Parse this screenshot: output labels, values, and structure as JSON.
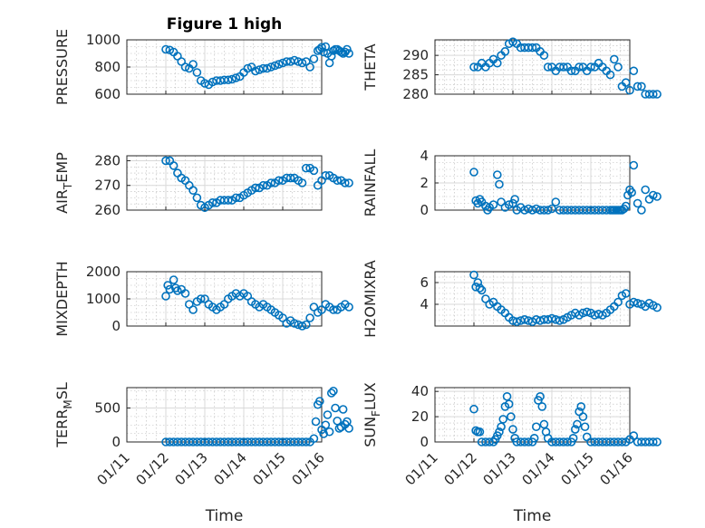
{
  "figure": {
    "title": "Figure 1 high",
    "marker_color": "#0072BD"
  },
  "chart_data": [
    {
      "type": "scatter",
      "title": "Figure 1 high",
      "xlabel": "",
      "ylabel": "PRESSURE",
      "ylim": [
        600,
        1000
      ],
      "yticks": [
        600,
        800,
        1000
      ],
      "xlim": [
        "01/11",
        "01/16"
      ],
      "xticks": [
        "01/11",
        "01/12",
        "01/13",
        "01/14",
        "01/15",
        "01/16"
      ],
      "series": [
        {
          "x": [
            1.0,
            1.1,
            1.2,
            1.3,
            1.4,
            1.5,
            1.6,
            1.7,
            1.8,
            1.9,
            2.0,
            2.1,
            2.2,
            2.3,
            2.4,
            2.5,
            2.6,
            2.7,
            2.8,
            2.9,
            3.0,
            3.1,
            3.2,
            3.3,
            3.4,
            3.5,
            3.6,
            3.7,
            3.8,
            3.9,
            4.0,
            4.1,
            4.2,
            4.3,
            4.4,
            4.5,
            4.6,
            4.7,
            4.8,
            4.9,
            4.95,
            5.0,
            5.05,
            5.1,
            5.15,
            5.2,
            5.25,
            5.3,
            5.35,
            5.4,
            5.45,
            5.5,
            5.55,
            5.6,
            5.65,
            5.7
          ],
          "y": [
            930,
            925,
            910,
            880,
            840,
            800,
            790,
            820,
            760,
            700,
            680,
            670,
            690,
            700,
            700,
            705,
            705,
            710,
            720,
            730,
            760,
            790,
            800,
            770,
            780,
            790,
            790,
            800,
            810,
            820,
            830,
            840,
            840,
            850,
            840,
            830,
            840,
            800,
            860,
            920,
            930,
            945,
            910,
            950,
            900,
            830,
            880,
            920,
            930,
            930,
            920,
            910,
            900,
            910,
            930,
            900
          ]
        }
      ]
    },
    {
      "type": "scatter",
      "title": "",
      "xlabel": "",
      "ylabel": "THETA",
      "ylim": [
        280,
        294
      ],
      "yticks": [
        280,
        285,
        290
      ],
      "xlim": [
        "01/11",
        "01/16"
      ],
      "xticks": [
        "01/11",
        "01/12",
        "01/13",
        "01/14",
        "01/15",
        "01/16"
      ],
      "series": [
        {
          "x": [
            1.0,
            1.1,
            1.2,
            1.3,
            1.4,
            1.5,
            1.6,
            1.7,
            1.8,
            1.9,
            2.0,
            2.1,
            2.2,
            2.3,
            2.4,
            2.5,
            2.6,
            2.7,
            2.8,
            2.9,
            3.0,
            3.1,
            3.2,
            3.3,
            3.4,
            3.5,
            3.6,
            3.7,
            3.8,
            3.9,
            4.0,
            4.1,
            4.2,
            4.3,
            4.4,
            4.5,
            4.6,
            4.7,
            4.8,
            4.9,
            5.0,
            5.1,
            5.2,
            5.3,
            5.4,
            5.5,
            5.6,
            5.7
          ],
          "y": [
            287,
            287,
            288,
            287,
            288,
            289,
            288,
            290,
            291,
            293,
            293.5,
            293,
            292,
            292,
            292,
            292,
            292,
            291,
            290,
            287,
            287,
            286,
            287,
            287,
            287,
            286,
            286,
            287,
            287,
            286,
            287,
            287,
            288,
            287,
            286,
            285,
            289,
            287,
            282,
            283,
            281,
            286,
            282,
            282,
            280,
            280,
            280,
            280
          ]
        }
      ]
    },
    {
      "type": "scatter",
      "title": "",
      "xlabel": "",
      "ylabel": "AIR_TEMP",
      "ylim": [
        260,
        282
      ],
      "yticks": [
        260,
        270,
        280
      ],
      "xlim": [
        "01/11",
        "01/16"
      ],
      "xticks": [
        "01/11",
        "01/12",
        "01/13",
        "01/14",
        "01/15",
        "01/16"
      ],
      "series": [
        {
          "x": [
            1.0,
            1.1,
            1.2,
            1.3,
            1.4,
            1.5,
            1.6,
            1.7,
            1.8,
            1.9,
            2.0,
            2.1,
            2.2,
            2.3,
            2.4,
            2.5,
            2.6,
            2.7,
            2.8,
            2.9,
            3.0,
            3.1,
            3.2,
            3.3,
            3.4,
            3.5,
            3.6,
            3.7,
            3.8,
            3.9,
            4.0,
            4.1,
            4.2,
            4.3,
            4.4,
            4.5,
            4.6,
            4.7,
            4.8,
            4.9,
            5.0,
            5.1,
            5.2,
            5.3,
            5.4,
            5.5,
            5.6,
            5.7
          ],
          "y": [
            280,
            280,
            278,
            275,
            273,
            272,
            270,
            268,
            265,
            262,
            261,
            262,
            263,
            263,
            264,
            264,
            264,
            264,
            265,
            265,
            266,
            267,
            268,
            269,
            269,
            270,
            270,
            271,
            271,
            272,
            272,
            273,
            273,
            273,
            272,
            271,
            277,
            277,
            276,
            270,
            272,
            274,
            274,
            273,
            272,
            272,
            271,
            271
          ]
        }
      ]
    },
    {
      "type": "scatter",
      "title": "",
      "xlabel": "",
      "ylabel": "RAINFALL",
      "ylim": [
        0,
        4
      ],
      "yticks": [
        0,
        2,
        4
      ],
      "xlim": [
        "01/11",
        "01/16"
      ],
      "xticks": [
        "01/11",
        "01/12",
        "01/13",
        "01/14",
        "01/15",
        "01/16"
      ],
      "series": [
        {
          "x": [
            1.0,
            1.05,
            1.1,
            1.15,
            1.2,
            1.3,
            1.35,
            1.4,
            1.5,
            1.6,
            1.65,
            1.7,
            1.8,
            1.9,
            2.0,
            2.05,
            2.1,
            2.2,
            2.3,
            2.4,
            2.5,
            2.6,
            2.7,
            2.8,
            2.9,
            3.0,
            3.1,
            3.2,
            3.3,
            3.4,
            3.5,
            3.6,
            3.7,
            3.8,
            3.9,
            4.0,
            4.1,
            4.2,
            4.3,
            4.4,
            4.5,
            4.55,
            4.6,
            4.65,
            4.7,
            4.75,
            4.8,
            4.85,
            4.9,
            4.95,
            5.0,
            5.05,
            5.1,
            5.2,
            5.3,
            5.4,
            5.5,
            5.6,
            5.7
          ],
          "y": [
            2.8,
            0.7,
            0.5,
            0.8,
            0.6,
            0.3,
            0,
            0.2,
            0.4,
            2.6,
            1.9,
            0.6,
            0.2,
            0.4,
            0.5,
            0.8,
            0,
            0.2,
            0,
            0.1,
            0,
            0.1,
            0,
            0,
            0,
            0.1,
            0.6,
            0,
            0,
            0,
            0,
            0,
            0,
            0,
            0,
            0,
            0,
            0,
            0,
            0,
            0,
            0,
            0,
            0,
            0,
            0,
            0,
            0.1,
            0.3,
            1.1,
            1.5,
            1.3,
            3.3,
            0.5,
            0,
            1.5,
            0.8,
            1.1,
            1.0
          ]
        }
      ]
    },
    {
      "type": "scatter",
      "title": "",
      "xlabel": "",
      "ylabel": "MIXDEPTH",
      "ylim": [
        0,
        2000
      ],
      "yticks": [
        0,
        1000,
        2000
      ],
      "xlim": [
        "01/11",
        "01/16"
      ],
      "xticks": [
        "01/11",
        "01/12",
        "01/13",
        "01/14",
        "01/15",
        "01/16"
      ],
      "series": [
        {
          "x": [
            1.0,
            1.05,
            1.1,
            1.2,
            1.25,
            1.3,
            1.4,
            1.5,
            1.6,
            1.7,
            1.8,
            1.9,
            2.0,
            2.1,
            2.2,
            2.3,
            2.4,
            2.5,
            2.6,
            2.7,
            2.8,
            2.9,
            3.0,
            3.1,
            3.2,
            3.3,
            3.4,
            3.5,
            3.6,
            3.7,
            3.8,
            3.9,
            4.0,
            4.1,
            4.2,
            4.3,
            4.4,
            4.5,
            4.6,
            4.7,
            4.8,
            4.9,
            5.0,
            5.1,
            5.2,
            5.3,
            5.4,
            5.5,
            5.6,
            5.7
          ],
          "y": [
            1100,
            1500,
            1350,
            1700,
            1400,
            1300,
            1350,
            1200,
            800,
            600,
            900,
            1000,
            1000,
            800,
            700,
            600,
            700,
            800,
            1000,
            1100,
            1200,
            1100,
            1200,
            1100,
            900,
            800,
            700,
            800,
            700,
            600,
            500,
            400,
            300,
            100,
            200,
            100,
            50,
            0,
            50,
            300,
            700,
            500,
            600,
            800,
            700,
            600,
            600,
            700,
            800,
            700
          ]
        }
      ]
    },
    {
      "type": "scatter",
      "title": "",
      "xlabel": "",
      "ylabel": "H2OMIXRA",
      "ylim": [
        2,
        7
      ],
      "yticks": [
        4,
        6
      ],
      "xlim": [
        "01/11",
        "01/16"
      ],
      "xticks": [
        "01/11",
        "01/12",
        "01/13",
        "01/14",
        "01/15",
        "01/16"
      ],
      "series": [
        {
          "x": [
            1.0,
            1.05,
            1.1,
            1.15,
            1.2,
            1.3,
            1.4,
            1.5,
            1.6,
            1.7,
            1.8,
            1.9,
            2.0,
            2.1,
            2.2,
            2.3,
            2.4,
            2.5,
            2.6,
            2.7,
            2.8,
            2.9,
            3.0,
            3.1,
            3.2,
            3.3,
            3.4,
            3.5,
            3.6,
            3.7,
            3.8,
            3.9,
            4.0,
            4.1,
            4.2,
            4.3,
            4.4,
            4.5,
            4.6,
            4.7,
            4.8,
            4.9,
            5.0,
            5.1,
            5.2,
            5.3,
            5.4,
            5.5,
            5.6,
            5.7
          ],
          "y": [
            6.7,
            5.6,
            6.0,
            5.5,
            5.3,
            4.5,
            4.0,
            4.2,
            3.8,
            3.5,
            3.2,
            2.8,
            2.5,
            2.4,
            2.5,
            2.6,
            2.5,
            2.4,
            2.6,
            2.5,
            2.6,
            2.6,
            2.7,
            2.6,
            2.5,
            2.6,
            2.8,
            3.0,
            3.2,
            3.0,
            3.2,
            3.3,
            3.2,
            3.0,
            3.1,
            3.0,
            3.2,
            3.5,
            3.8,
            4.2,
            4.8,
            5.0,
            4.0,
            4.2,
            4.1,
            4.0,
            3.8,
            4.1,
            3.9,
            3.7
          ]
        }
      ]
    },
    {
      "type": "scatter",
      "title": "",
      "xlabel": "Time",
      "ylabel": "TERR_MSL",
      "ylim": [
        0,
        800
      ],
      "yticks": [
        0,
        500
      ],
      "xlim": [
        "01/11",
        "01/16"
      ],
      "xticks": [
        "01/11",
        "01/12",
        "01/13",
        "01/14",
        "01/15",
        "01/16"
      ],
      "series": [
        {
          "x": [
            1.0,
            1.1,
            1.2,
            1.3,
            1.4,
            1.5,
            1.6,
            1.7,
            1.8,
            1.9,
            2.0,
            2.1,
            2.2,
            2.3,
            2.4,
            2.5,
            2.6,
            2.7,
            2.8,
            2.9,
            3.0,
            3.1,
            3.2,
            3.3,
            3.4,
            3.5,
            3.6,
            3.7,
            3.8,
            3.9,
            4.0,
            4.1,
            4.2,
            4.3,
            4.4,
            4.5,
            4.6,
            4.7,
            4.8,
            4.85,
            4.9,
            4.95,
            5.0,
            5.05,
            5.1,
            5.15,
            5.2,
            5.25,
            5.3,
            5.35,
            5.4,
            5.45,
            5.5,
            5.55,
            5.6,
            5.65,
            5.7
          ],
          "y": [
            0,
            0,
            0,
            0,
            0,
            0,
            0,
            0,
            0,
            0,
            0,
            0,
            0,
            0,
            0,
            0,
            0,
            0,
            0,
            0,
            0,
            0,
            0,
            0,
            0,
            0,
            0,
            0,
            0,
            0,
            0,
            0,
            0,
            0,
            0,
            0,
            0,
            0,
            50,
            300,
            550,
            600,
            180,
            120,
            250,
            400,
            150,
            720,
            750,
            500,
            310,
            200,
            220,
            480,
            260,
            300,
            200
          ]
        }
      ]
    },
    {
      "type": "scatter",
      "title": "",
      "xlabel": "Time",
      "ylabel": "SUN_FLUX",
      "ylim": [
        0,
        43
      ],
      "yticks": [
        0,
        20,
        40
      ],
      "xlim": [
        "01/11",
        "01/16"
      ],
      "xticks": [
        "01/11",
        "01/12",
        "01/13",
        "01/14",
        "01/15",
        "01/16"
      ],
      "series": [
        {
          "x": [
            1.0,
            1.05,
            1.1,
            1.15,
            1.2,
            1.3,
            1.4,
            1.5,
            1.55,
            1.6,
            1.65,
            1.7,
            1.75,
            1.8,
            1.85,
            1.9,
            1.95,
            2.0,
            2.05,
            2.1,
            2.2,
            2.3,
            2.4,
            2.5,
            2.55,
            2.6,
            2.65,
            2.7,
            2.75,
            2.8,
            2.85,
            2.9,
            3.0,
            3.1,
            3.2,
            3.3,
            3.4,
            3.5,
            3.55,
            3.6,
            3.65,
            3.7,
            3.75,
            3.8,
            3.85,
            3.9,
            4.0,
            4.1,
            4.2,
            4.3,
            4.4,
            4.5,
            4.6,
            4.7,
            4.8,
            4.9,
            5.0,
            5.1,
            5.2,
            5.3,
            5.4,
            5.5,
            5.6,
            5.7
          ],
          "y": [
            26,
            9,
            8,
            8,
            0,
            0,
            0,
            0,
            2,
            5,
            8,
            12,
            18,
            28,
            36,
            30,
            20,
            10,
            3,
            0,
            0,
            0,
            0,
            0,
            3,
            12,
            33,
            36,
            28,
            14,
            8,
            3,
            0,
            0,
            0,
            0,
            0,
            0,
            3,
            10,
            14,
            24,
            28,
            20,
            12,
            4,
            0,
            0,
            0,
            0,
            0,
            0,
            0,
            0,
            0,
            0,
            2,
            5,
            0,
            0,
            0,
            0,
            0,
            0
          ]
        }
      ]
    }
  ]
}
